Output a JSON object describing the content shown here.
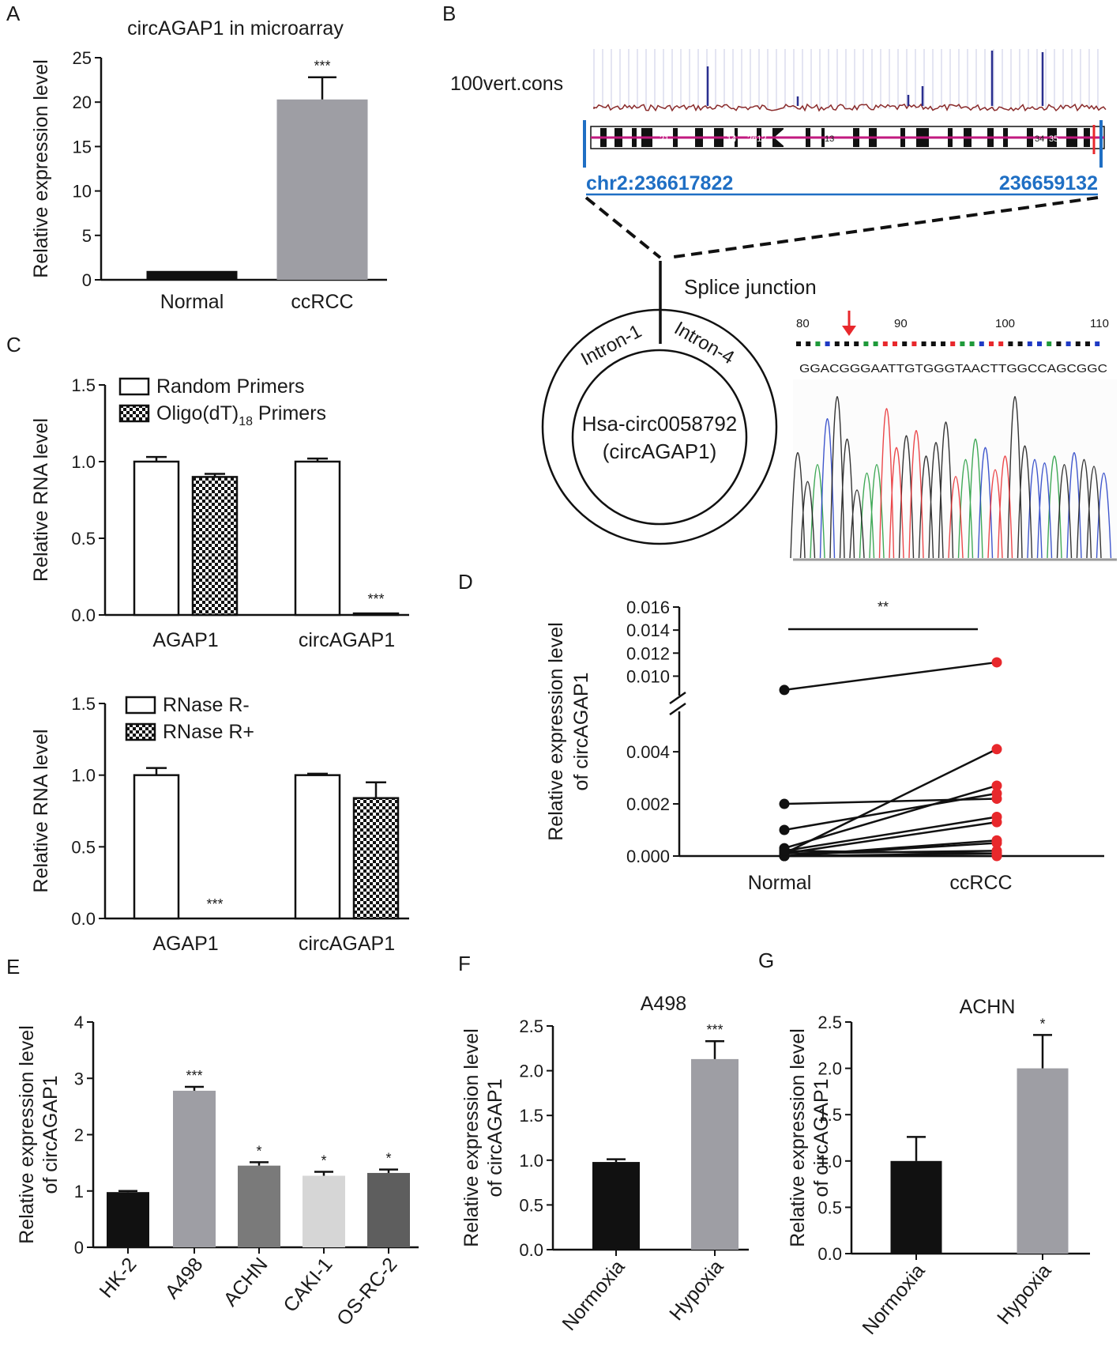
{
  "colors": {
    "black": "#111111",
    "dark_gray": "#7a7a7a",
    "mid_gray": "#9e9ea4",
    "light_gray": "#d6d6d6",
    "charcoal": "#5e5e5e",
    "red_dot": "#e8282c",
    "link_blue": "#1f6fc4",
    "conservation_red": "#8a2b2b",
    "conservation_blue": "#2a2f8f",
    "chromosome_magenta": "#c2197f"
  },
  "panel_labels": {
    "a": "A",
    "b": "B",
    "c": "C",
    "d": "D",
    "e": "E",
    "f": "F",
    "g": "G"
  },
  "panel_b": {
    "track_label": "100vert.cons",
    "chr_start": "chr2:236617822",
    "chr_end": "236659132",
    "chromosome_band_labels": [
      "21",
      "14",
      "2n12",
      "13",
      "34",
      "35"
    ],
    "splice_label": "Splice junction",
    "intron_left": "Intron-1",
    "intron_right": "Intron-4",
    "circ_name": "Hsa-circ0058792",
    "circ_alias": "(circAGAP1)",
    "sequence": "GGACGGGAATTGTGGGTAACTTGGCCAGCGGC",
    "position_ticks": [
      "80",
      "90",
      "100",
      "110"
    ]
  },
  "chart_data": [
    {
      "id": "A",
      "type": "bar",
      "title": "circAGAP1 in microarray",
      "xlabel": "",
      "ylabel": "Relative expression level",
      "ylim": [
        0,
        25
      ],
      "yticks": [
        "0",
        "5",
        "10",
        "15",
        "20",
        "25"
      ],
      "categories": [
        "Normal",
        "ccRCC"
      ],
      "values": [
        1.0,
        20.3
      ],
      "errors": [
        0.0,
        2.5
      ],
      "bar_colors": [
        "#111111",
        "#9e9ea4"
      ],
      "significance": [
        "",
        "***"
      ]
    },
    {
      "id": "C1",
      "type": "bar",
      "xlabel": "",
      "ylabel": "Relative RNA level",
      "ylim": [
        0,
        1.5
      ],
      "yticks": [
        "0.0",
        "0.5",
        "1.0",
        "1.5"
      ],
      "categories": [
        "AGAP1",
        "circAGAP1"
      ],
      "legend_position": "top-left",
      "series": [
        {
          "name": "Random Primers",
          "values": [
            1.0,
            1.0
          ],
          "errors": [
            0.03,
            0.02
          ],
          "pattern": "open"
        },
        {
          "name": "Oligo(dT)",
          "name_sub": "18",
          "name_tail": " Primers",
          "values": [
            0.9,
            0.01
          ],
          "errors": [
            0.02,
            0.0
          ],
          "pattern": "checker"
        }
      ],
      "significance": [
        [
          "",
          ""
        ],
        [
          "",
          "***"
        ]
      ]
    },
    {
      "id": "C2",
      "type": "bar",
      "xlabel": "",
      "ylabel": "Relative RNA level",
      "ylim": [
        0,
        1.5
      ],
      "yticks": [
        "0.0",
        "0.5",
        "1.0",
        "1.5"
      ],
      "categories": [
        "AGAP1",
        "circAGAP1"
      ],
      "legend_position": "top-left",
      "series": [
        {
          "name": "RNase R-",
          "values": [
            1.0,
            1.0
          ],
          "errors": [
            0.05,
            0.01
          ],
          "pattern": "open"
        },
        {
          "name": "RNase R+",
          "values": [
            0.0,
            0.84
          ],
          "errors": [
            0.0,
            0.11
          ],
          "pattern": "checker"
        }
      ],
      "significance": [
        [
          "",
          "***"
        ],
        [
          "",
          ""
        ]
      ]
    },
    {
      "id": "D",
      "type": "scatter",
      "ylabel": "Relative expression level",
      "ylabel2": "of circAGAP1",
      "categories": [
        "Normal",
        "ccRCC"
      ],
      "ylim": [
        0,
        0.016
      ],
      "y_break": [
        0.0055,
        0.0092
      ],
      "yticks_low": [
        "0.000",
        "0.002",
        "0.004"
      ],
      "yticks_high": [
        "0.010",
        "0.012",
        "0.014",
        "0.016"
      ],
      "significance": "**",
      "pairs": [
        [
          0.0088,
          0.0112
        ],
        [
          0.002,
          0.0022
        ],
        [
          0.001,
          0.0024
        ],
        [
          0.0003,
          0.0027
        ],
        [
          0.0001,
          0.0041
        ],
        [
          0.0002,
          0.0015
        ],
        [
          0.0001,
          0.0013
        ],
        [
          0.0,
          0.0006
        ],
        [
          0.0,
          0.0005
        ],
        [
          0.0001,
          0.0002
        ],
        [
          0.0,
          0.0001
        ],
        [
          0.0,
          0.0
        ],
        [
          0.0002,
          0.0001
        ]
      ]
    },
    {
      "id": "E",
      "type": "bar",
      "ylabel": "Relative expression level",
      "ylabel2": "of circAGAP1",
      "ylim": [
        0,
        4
      ],
      "yticks": [
        "0",
        "1",
        "2",
        "3",
        "4"
      ],
      "categories": [
        "HK-2",
        "A498",
        "ACHN",
        "CAKI-1",
        "OS-RC-2"
      ],
      "values": [
        0.98,
        2.78,
        1.45,
        1.27,
        1.32
      ],
      "errors": [
        0.02,
        0.07,
        0.06,
        0.07,
        0.06
      ],
      "bar_colors": [
        "#111111",
        "#9e9ea4",
        "#7a7a7a",
        "#d6d6d6",
        "#5e5e5e"
      ],
      "significance": [
        "",
        "***",
        "*",
        "*",
        "*"
      ]
    },
    {
      "id": "F",
      "type": "bar",
      "title": "A498",
      "ylabel": "Relative expression level",
      "ylabel2": "of circAGAP1",
      "ylim": [
        0,
        2.5
      ],
      "yticks": [
        "0.0",
        "0.5",
        "1.0",
        "1.5",
        "2.0",
        "2.5"
      ],
      "categories": [
        "Normoxia",
        "Hypoxia"
      ],
      "values": [
        0.98,
        2.13
      ],
      "errors": [
        0.03,
        0.2
      ],
      "bar_colors": [
        "#111111",
        "#9e9ea4"
      ],
      "significance": [
        "",
        "***"
      ]
    },
    {
      "id": "G",
      "type": "bar",
      "title": "ACHN",
      "ylabel": "Relative expression level",
      "ylabel2": "of circAGAP1",
      "ylim": [
        0,
        2.5
      ],
      "yticks": [
        "0.0",
        "0.5",
        "1.0",
        "1.5",
        "2.0",
        "2.5"
      ],
      "categories": [
        "Normoxia",
        "Hypoxia"
      ],
      "values": [
        1.0,
        2.0
      ],
      "errors": [
        0.26,
        0.36
      ],
      "bar_colors": [
        "#111111",
        "#9e9ea4"
      ],
      "significance": [
        "",
        "*"
      ]
    }
  ]
}
